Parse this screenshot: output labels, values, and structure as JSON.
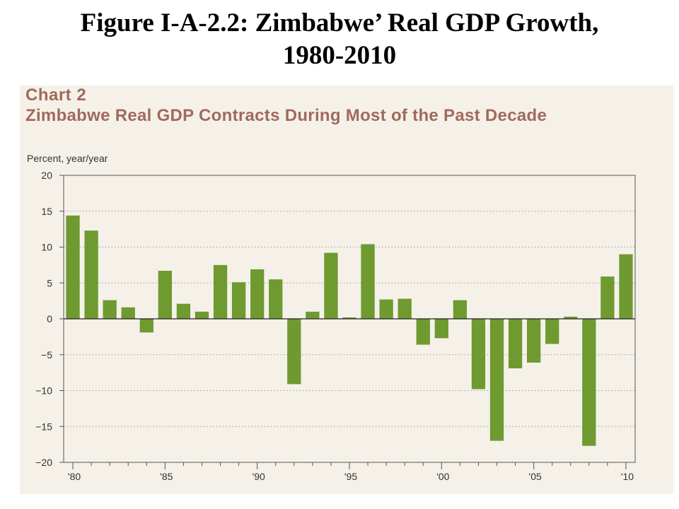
{
  "slide": {
    "title_line1": "Figure I-A-2.2: Zimbabwe’ Real GDP Growth,",
    "title_line2": "1980-2010"
  },
  "panel": {
    "chart_label": "Chart 2",
    "chart_title": "Zimbabwe Real GDP Contracts During Most of the Past Decade"
  },
  "colors": {
    "bar": "#6e9a30",
    "panel_bg": "#f5f1e9",
    "title_accent": "#a06a5d"
  },
  "chart_data": {
    "type": "bar",
    "title": "Zimbabwe Real GDP Contracts During Most of the Past Decade",
    "ylabel": "Percent, year/year",
    "xlabel": "",
    "ylim": [
      -20,
      20
    ],
    "yticks": [
      20,
      15,
      10,
      5,
      0,
      -5,
      -10,
      -15,
      -20
    ],
    "ytick_labels": [
      "20",
      "15",
      "10",
      "5",
      "0",
      "−5",
      "−10",
      "−15",
      "−20"
    ],
    "grid": true,
    "x_tick_labels": [
      {
        "year": 1980,
        "label": "'80"
      },
      {
        "year": 1985,
        "label": "'85"
      },
      {
        "year": 1990,
        "label": "'90"
      },
      {
        "year": 1995,
        "label": "'95"
      },
      {
        "year": 2000,
        "label": "'00"
      },
      {
        "year": 2005,
        "label": "'05"
      },
      {
        "year": 2010,
        "label": "'10"
      }
    ],
    "categories": [
      1980,
      1981,
      1982,
      1983,
      1984,
      1985,
      1986,
      1987,
      1988,
      1989,
      1990,
      1991,
      1992,
      1993,
      1994,
      1995,
      1996,
      1997,
      1998,
      1999,
      2000,
      2001,
      2002,
      2003,
      2004,
      2005,
      2006,
      2007,
      2008,
      2009,
      2010
    ],
    "values": [
      14.4,
      12.3,
      2.6,
      1.6,
      -1.9,
      6.7,
      2.1,
      1.0,
      7.5,
      5.1,
      6.9,
      5.5,
      -9.1,
      1.0,
      9.2,
      0.2,
      10.4,
      2.7,
      2.8,
      -3.6,
      -2.7,
      2.6,
      -9.8,
      -17.0,
      -6.9,
      -6.1,
      -3.5,
      0.3,
      -17.7,
      5.9,
      9.0
    ]
  }
}
